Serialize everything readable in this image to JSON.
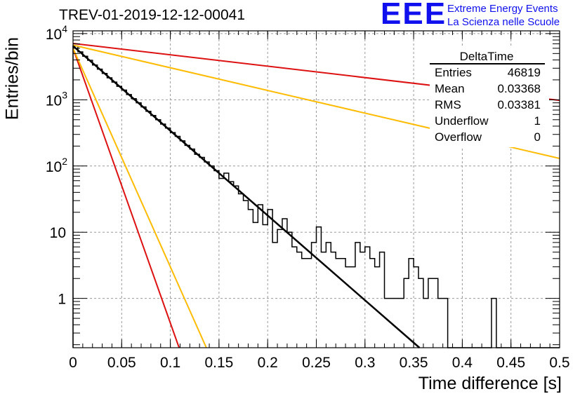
{
  "chart_data": {
    "type": "line",
    "title": "TREV-01-2019-12-12-00041",
    "xlabel": "Time difference [s]",
    "ylabel": "Entries/bin",
    "xlim": [
      0,
      0.5
    ],
    "ylim": [
      0.18,
      11000
    ],
    "yscale": "log",
    "grid": true,
    "x_ticks": [
      {
        "v": 0,
        "label": "0"
      },
      {
        "v": 0.05,
        "label": "0.05"
      },
      {
        "v": 0.1,
        "label": "0.1"
      },
      {
        "v": 0.15,
        "label": "0.15"
      },
      {
        "v": 0.2,
        "label": "0.2"
      },
      {
        "v": 0.25,
        "label": "0.25"
      },
      {
        "v": 0.3,
        "label": "0.3"
      },
      {
        "v": 0.35,
        "label": "0.35"
      },
      {
        "v": 0.4,
        "label": "0.4"
      },
      {
        "v": 0.45,
        "label": "0.45"
      },
      {
        "v": 0.5,
        "label": "0.5"
      }
    ],
    "y_ticks": [
      {
        "v": 1,
        "label": "1"
      },
      {
        "v": 10,
        "label": "10"
      },
      {
        "v": 100,
        "base": "10",
        "exp": "2"
      },
      {
        "v": 1000,
        "base": "10",
        "exp": "3"
      },
      {
        "v": 10000,
        "base": "10",
        "exp": "4"
      }
    ],
    "histogram": {
      "bin_width": 0.005,
      "counts": [
        6500,
        5300,
        4550,
        3950,
        3350,
        2900,
        2500,
        2150,
        1850,
        1600,
        1400,
        1200,
        1040,
        900,
        780,
        670,
        580,
        500,
        430,
        375,
        320,
        280,
        240,
        205,
        180,
        150,
        135,
        115,
        100,
        85,
        65,
        78,
        58,
        50,
        38,
        30,
        22,
        14,
        26,
        13,
        22,
        7,
        11,
        16,
        10,
        6,
        5,
        4,
        4,
        7,
        12,
        5,
        7,
        5,
        4,
        4,
        3,
        3,
        7,
        5,
        6,
        4,
        3,
        5,
        1,
        1,
        1,
        1,
        2,
        4,
        3,
        2,
        1,
        2,
        2,
        1,
        1,
        0,
        0,
        0,
        0,
        0,
        0,
        0,
        0,
        0,
        1,
        0,
        0,
        0,
        0,
        0,
        0,
        0,
        0,
        0,
        0,
        0,
        0,
        0
      ]
    },
    "fits": [
      {
        "color": "#000000",
        "x": [
          0,
          0.356
        ],
        "y": [
          6500,
          0.18
        ]
      },
      {
        "color": "#dd1111",
        "x": [
          0,
          0.5
        ],
        "y": [
          7100,
          980
        ]
      },
      {
        "color": "#ffbb00",
        "x": [
          0,
          0.5
        ],
        "y": [
          6700,
          130
        ]
      },
      {
        "color": "#dd1111",
        "x": [
          0,
          0.109
        ],
        "y": [
          6000,
          0.18
        ]
      },
      {
        "color": "#ffbb00",
        "x": [
          0,
          0.137
        ],
        "y": [
          6000,
          0.18
        ]
      }
    ],
    "stats": {
      "title": "DeltaTime",
      "rows": [
        {
          "label": "Entries",
          "value": "46819"
        },
        {
          "label": "Mean",
          "value": "0.03368"
        },
        {
          "label": "RMS",
          "value": "0.03381"
        },
        {
          "label": "Underflow",
          "value": "1"
        },
        {
          "label": "Overflow",
          "value": "0"
        }
      ]
    }
  },
  "logo": {
    "mark": "EEE",
    "line1": "Extreme Energy Events",
    "line2": "La Scienza nelle Scuole"
  }
}
